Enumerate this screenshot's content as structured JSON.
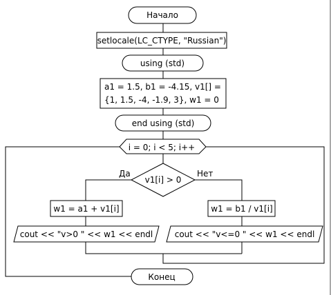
{
  "flowchart": {
    "start": "Начало",
    "setlocale": "setlocale(LC_CTYPE, \"Russian\")",
    "using": "using (std)",
    "init_line1": "a1 = 1.5, b1 = -4.15, v1[] =",
    "init_line2": "{1, 1.5, -4, -1.9, 3}, w1 = 0",
    "end_using": "end using (std)",
    "loop": "i = 0; i < 5; i++",
    "condition": "v1[i] > 0",
    "yes_label": "Да",
    "no_label": "Нет",
    "yes_assign": "w1 = a1 + v1[i]",
    "no_assign": "w1 = b1 / v1[i]",
    "yes_output": "cout << \"v>0 \" << w1 << endl",
    "no_output": "cout << \"v<=0 \" << w1 << endl",
    "end": "Конец"
  }
}
